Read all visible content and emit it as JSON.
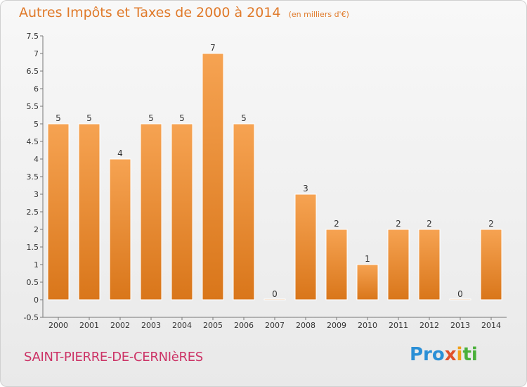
{
  "title": "Autres Impôts et Taxes de 2000 à 2014",
  "unit_note": "(en milliers d'€)",
  "commune": "SAINT-PIERRE-DE-CERNIèRES",
  "logo": {
    "p1": "Pro",
    "p2": "x",
    "p3": "i",
    "p4": "ti"
  },
  "colors": {
    "bar_top": "#f6a352",
    "bar_bottom": "#d9761a",
    "title": "#e07a2a",
    "commune": "#cc3366"
  },
  "chart_data": {
    "type": "bar",
    "categories": [
      "2000",
      "2001",
      "2002",
      "2003",
      "2004",
      "2005",
      "2006",
      "2007",
      "2008",
      "2009",
      "2010",
      "2011",
      "2012",
      "2013",
      "2014"
    ],
    "values": [
      5,
      5,
      4,
      5,
      5,
      7,
      5,
      0,
      3,
      2,
      1,
      2,
      2,
      0,
      2
    ],
    "data_labels": [
      "5",
      "5",
      "4",
      "5",
      "5",
      "7",
      "5",
      "0",
      "3",
      "2",
      "1",
      "2",
      "2",
      "0",
      "2"
    ],
    "ylim": [
      -0.5,
      7.5
    ],
    "yticks": [
      "-0.5",
      "0",
      "0.5",
      "1",
      "1.5",
      "2",
      "2.5",
      "3",
      "3.5",
      "4",
      "4.5",
      "5",
      "5.5",
      "6",
      "6.5",
      "7",
      "7.5"
    ],
    "ytick_values": [
      -0.5,
      0,
      0.5,
      1,
      1.5,
      2,
      2.5,
      3,
      3.5,
      4,
      4.5,
      5,
      5.5,
      6,
      6.5,
      7,
      7.5
    ],
    "grid": false
  }
}
